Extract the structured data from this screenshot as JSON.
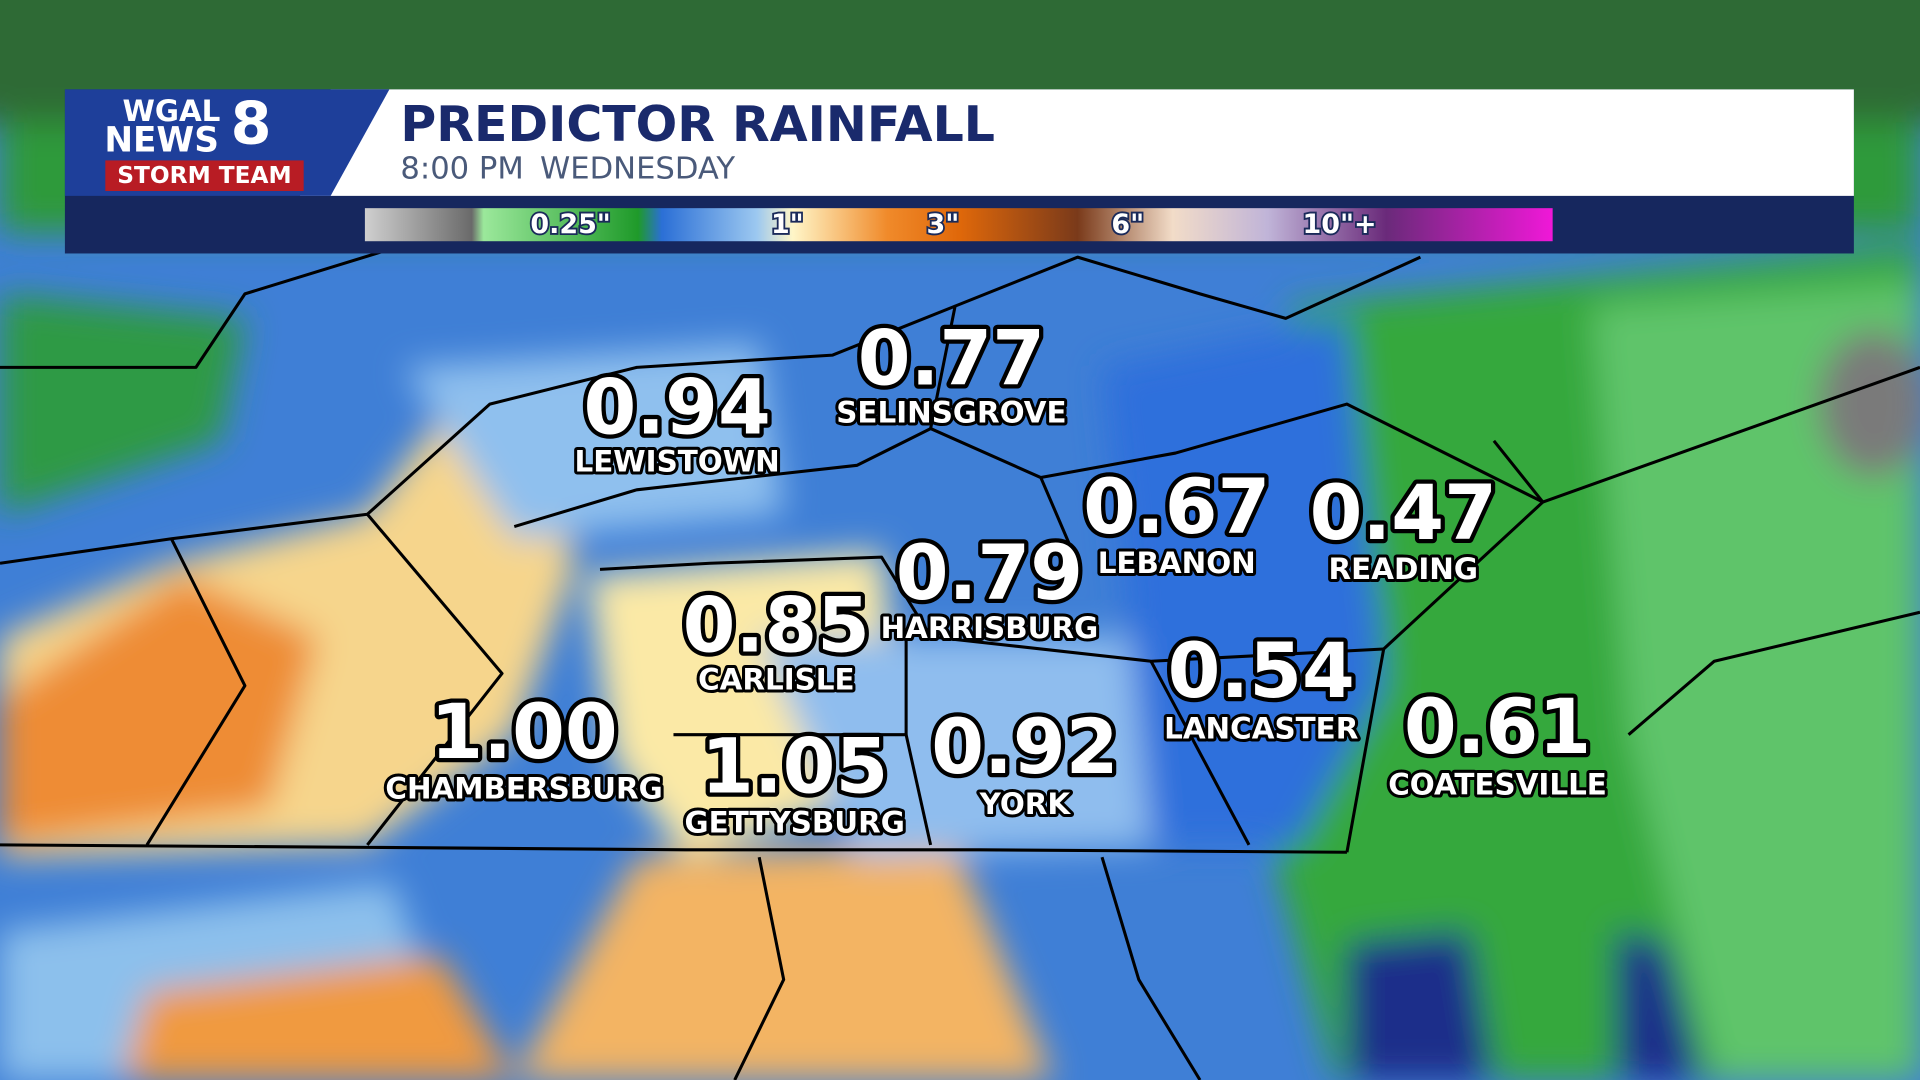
{
  "header": {
    "title": "PREDICTOR RAINFALL",
    "time": "8:00 PM",
    "day": "WEDNESDAY"
  },
  "logo": {
    "station": "WGAL",
    "news": "NEWS",
    "channel": "8",
    "team": "STORM TEAM"
  },
  "legend": {
    "labels": [
      "0.25\"",
      "1\"",
      "3\"",
      "6\"",
      "10\"+"
    ]
  },
  "cities": [
    {
      "name": "LEWISTOWN",
      "value": "0.94"
    },
    {
      "name": "SELINSGROVE",
      "value": "0.77"
    },
    {
      "name": "LEBANON",
      "value": "0.67"
    },
    {
      "name": "READING",
      "value": "0.47"
    },
    {
      "name": "HARRISBURG",
      "value": "0.79"
    },
    {
      "name": "CARLISLE",
      "value": "0.85"
    },
    {
      "name": "CHAMBERSBURG",
      "value": "1.00"
    },
    {
      "name": "GETTYSBURG",
      "value": "1.05"
    },
    {
      "name": "YORK",
      "value": "0.92"
    },
    {
      "name": "LANCASTER",
      "value": "0.54"
    },
    {
      "name": "COATESVILLE",
      "value": "0.61"
    }
  ]
}
